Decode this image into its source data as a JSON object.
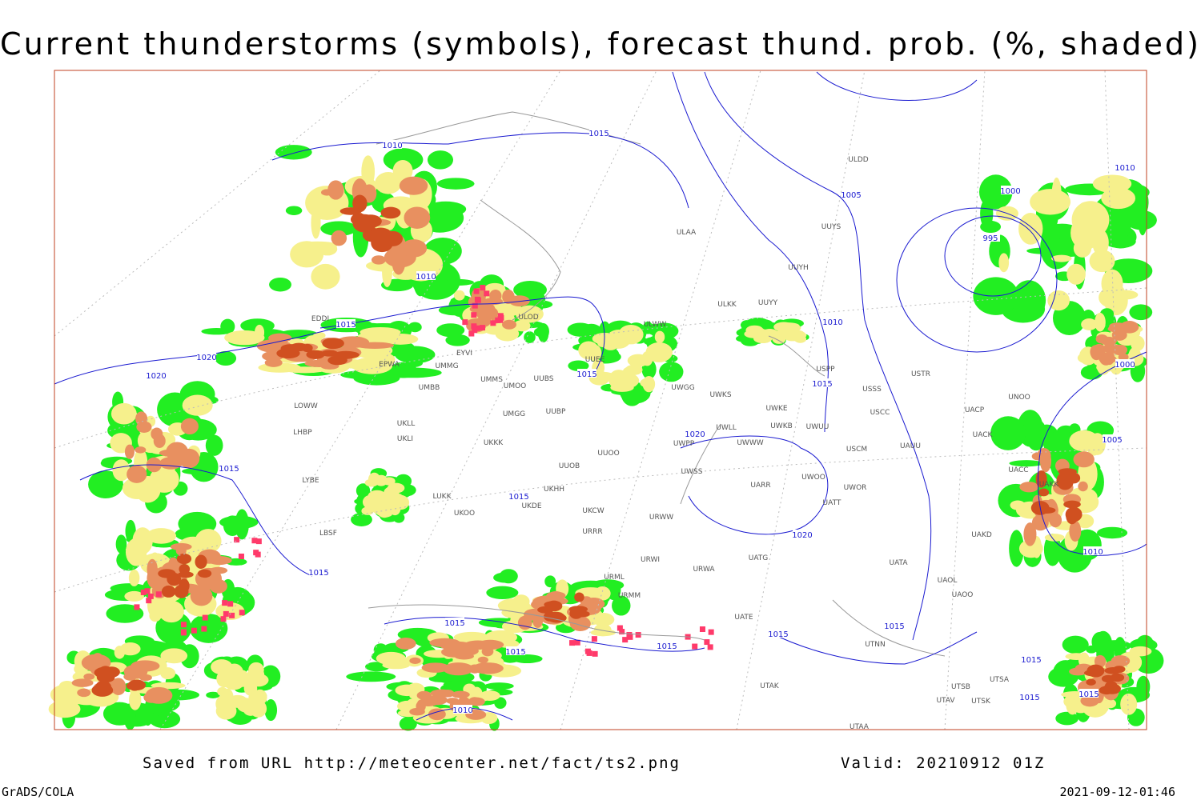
{
  "header": {
    "title": "Current thunderstorms (symbols), forecast thund. prob. (%, shaded)"
  },
  "isobar_labels": [
    "1010",
    "1015",
    "1010",
    "1015",
    "1020",
    "1020",
    "1005",
    "1000",
    "995",
    "1010",
    "1010",
    "1015",
    "1015",
    "1000",
    "1005",
    "1020",
    "1015",
    "1015",
    "1020",
    "1010",
    "1015",
    "1015",
    "1015",
    "1015",
    "1015",
    "1015",
    "1010",
    "1015",
    "1015",
    "1015"
  ],
  "station_labels": [
    "ULDD",
    "UUYS",
    "ULAA",
    "UUYH",
    "ULKK",
    "UUYY",
    "ULOD",
    "EDDI",
    "ULWW",
    "EYVI",
    "UUEE",
    "UMMG",
    "UMMS",
    "UMOO",
    "UUBS",
    "UWKS",
    "UWGG",
    "UMBB",
    "USPP",
    "USSS",
    "USTR",
    "UNOO",
    "USCC",
    "UACP",
    "UWKE",
    "UWKB",
    "UWUU",
    "UWLL",
    "UKLL",
    "UKLI",
    "UMGG",
    "UUBP",
    "UKKK",
    "UUOO",
    "UUOB",
    "UWWW",
    "UWPP",
    "USCM",
    "UAUU",
    "UACK",
    "UWSS",
    "UARR",
    "UWOO",
    "UWOR",
    "UATT",
    "UACC",
    "UAKK",
    "LUKK",
    "UKHH",
    "UKOO",
    "UKDE",
    "UKCW",
    "URRR",
    "URWW",
    "UAKD",
    "URWI",
    "UATG",
    "UATA",
    "UAOL",
    "URWA",
    "URML",
    "URMM",
    "UAOO",
    "UATE",
    "UTNN",
    "UTAK",
    "UTSA",
    "UTSB",
    "UTAV",
    "UTSK",
    "UTAA",
    "LBSF",
    "LYBE",
    "LHBP",
    "EPWA",
    "LOWW"
  ],
  "footer": {
    "source": "Saved from URL http://meteocenter.net/fact/ts2.png",
    "valid": "Valid: 20210912 01Z",
    "software": "GrADS/COLA",
    "timestamp": "2021-09-12-01:46"
  }
}
